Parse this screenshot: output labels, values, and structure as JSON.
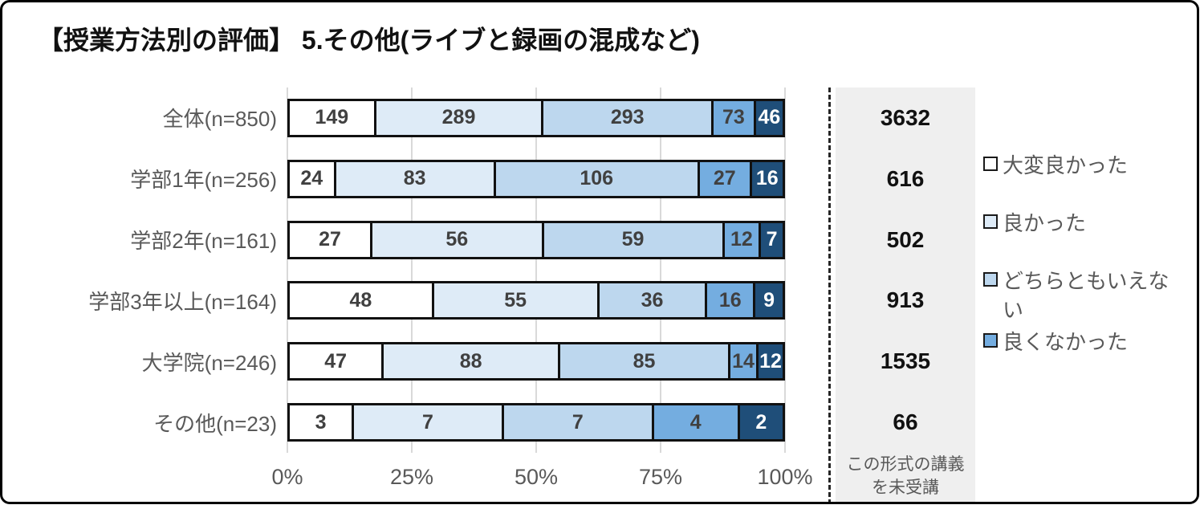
{
  "title": "【授業方法別の評価】 5.その他(ライブと録画の混成など)",
  "chart_data": {
    "type": "bar",
    "stacked": true,
    "orientation": "horizontal",
    "title": "【授業方法別の評価】 5.その他(ライブと録画の混成など)",
    "categories": [
      "全体(n=850)",
      "学部1年(n=256)",
      "学部2年(n=161)",
      "学部3年以上(n=164)",
      "大学院(n=246)",
      "その他(n=23)"
    ],
    "totals": [
      850,
      256,
      161,
      164,
      246,
      23
    ],
    "series": [
      {
        "name": "大変良かった",
        "color": "#ffffff",
        "values": [
          149,
          24,
          27,
          48,
          47,
          3
        ]
      },
      {
        "name": "良かった",
        "color": "#deebf7",
        "values": [
          289,
          83,
          56,
          55,
          88,
          7
        ]
      },
      {
        "name": "どちらともいえない",
        "color": "#bdd7ee",
        "values": [
          293,
          106,
          59,
          36,
          85,
          7
        ]
      },
      {
        "name": "良くなかった",
        "color": "#74ade0",
        "values": [
          73,
          27,
          12,
          16,
          14,
          4
        ]
      },
      {
        "name": "",
        "color": "#1f4e79",
        "values": [
          46,
          16,
          7,
          9,
          12,
          2
        ]
      }
    ],
    "x_ticks": [
      "0%",
      "25%",
      "50%",
      "75%",
      "100%"
    ],
    "xlim": [
      0,
      100
    ],
    "grid": true,
    "legend_position": "right",
    "legend_items": [
      {
        "label": "大変良かった",
        "color": "#ffffff"
      },
      {
        "label": "良かった",
        "color": "#deebf7"
      },
      {
        "label": "どちらともいえない",
        "color": "#bdd7ee"
      },
      {
        "label": "良くなかった",
        "color": "#74ade0"
      }
    ],
    "unreceived": {
      "values": [
        3632,
        616,
        502,
        913,
        1535,
        66
      ],
      "footer_lines": [
        "この形式の講義",
        "を未受講"
      ]
    }
  },
  "colors": {
    "grid": "#d9d9d9",
    "bar_border": "#111111",
    "value_text": "#404040",
    "value_text_on_dark": "#ffffff",
    "label_text": "#595959",
    "panel_bg": "#efefef",
    "dash_line": "#262626",
    "title_text": "#111111"
  }
}
